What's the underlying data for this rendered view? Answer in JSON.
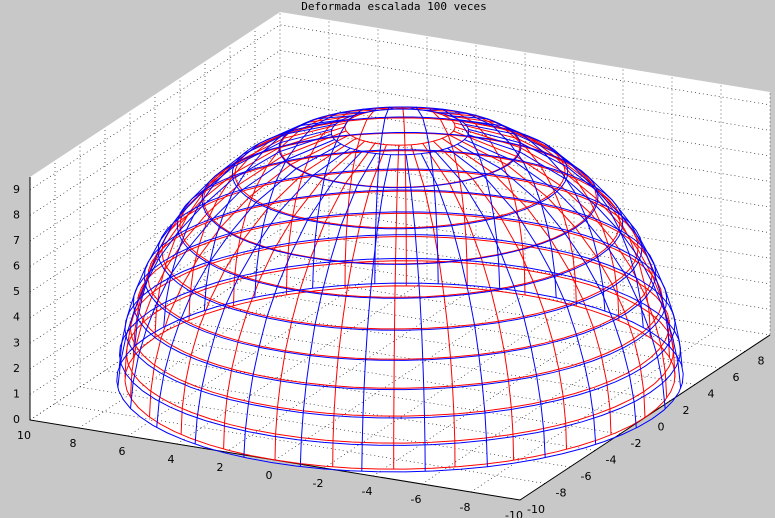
{
  "chart_data": {
    "type": "wireframe3d",
    "title": "Deformada escalada 100 veces",
    "xlim": [
      -10,
      10
    ],
    "xticks": [
      10,
      8,
      6,
      4,
      2,
      0,
      -2,
      -4,
      -6,
      -8,
      -10
    ],
    "ylim": [
      -10,
      10
    ],
    "yticks": [
      -10,
      -8,
      -6,
      -4,
      -2,
      0,
      2,
      4,
      6,
      8
    ],
    "zlim": [
      0,
      9.5
    ],
    "zticks": [
      0,
      1,
      2,
      3,
      4,
      5,
      6,
      7,
      8,
      9
    ],
    "grid": true,
    "series": [
      {
        "color": "#ff0000",
        "z": [
          0,
          1,
          2,
          3,
          4,
          5,
          6,
          7,
          8,
          9,
          9.8
        ],
        "radius": [
          10,
          9.95,
          9.8,
          9.54,
          9.17,
          8.66,
          8,
          7.14,
          6,
          4.36,
          2
        ]
      },
      {
        "color": "#0000ff",
        "z": [
          0,
          1,
          2,
          3,
          4,
          5,
          6,
          7,
          8,
          9,
          9.6
        ],
        "radius": [
          10.3,
          10.2,
          10,
          9.7,
          9.3,
          8.8,
          8.1,
          7.2,
          6.1,
          4.4,
          2.5
        ]
      }
    ]
  }
}
